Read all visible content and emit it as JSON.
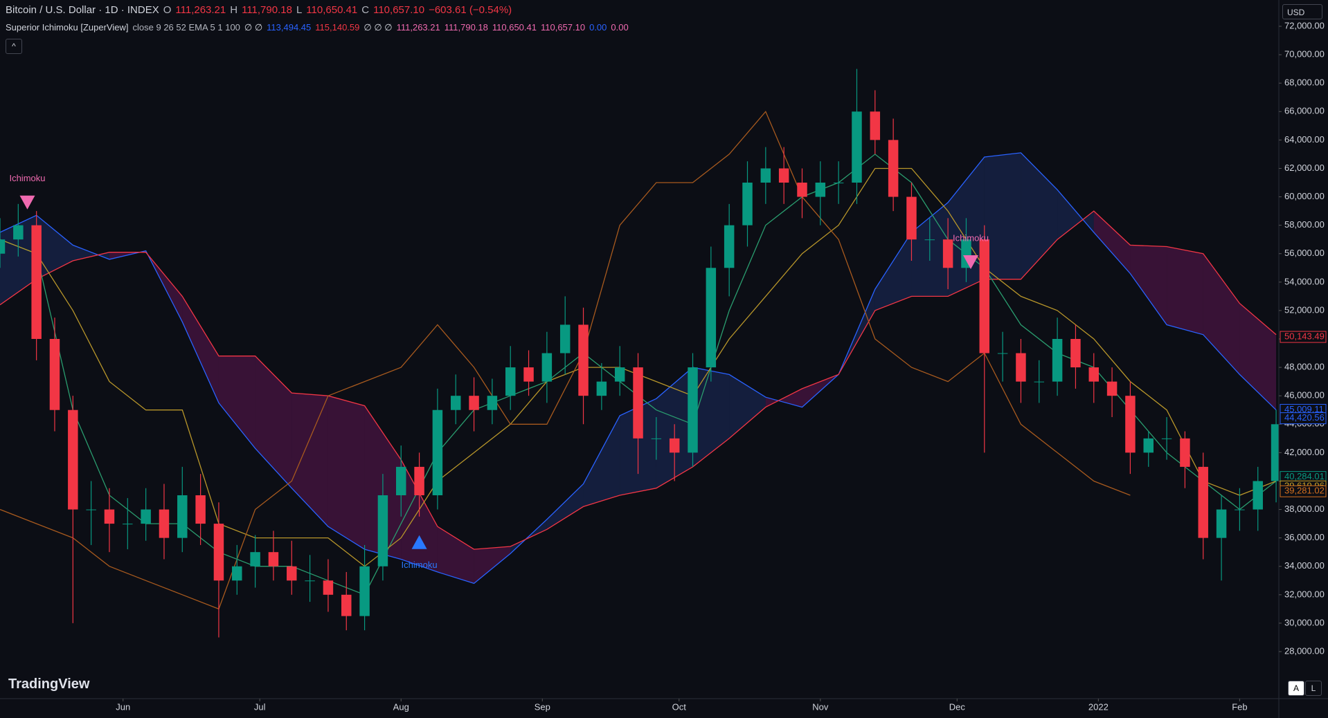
{
  "header": {
    "symbol": "Bitcoin / U.S. Dollar · 1D · INDEX",
    "o_label": "O",
    "o": "111,263.21",
    "h_label": "H",
    "h": "111,790.18",
    "l_label": "L",
    "l": "110,650.41",
    "c_label": "C",
    "c": "110,657.10",
    "change": "−603.61 (−0.54%)"
  },
  "indicator": {
    "name": "Superior Ichimoku [ZuperView]",
    "params": "close 9 26 52 EMA 5 1 100",
    "e1": "∅ ∅",
    "v1": "113,494.45",
    "v2": "115,140.59",
    "e2": "∅ ∅ ∅",
    "v3": "111,263.21",
    "v4": "111,790.18",
    "v5": "110,650.41",
    "v6": "110,657.10",
    "v7": "0.00",
    "v8": "0.00"
  },
  "currency": "USD",
  "brand": "TradingView",
  "buttons": [
    "A",
    "L"
  ],
  "chart_data": {
    "type": "candlestick",
    "xlim": [
      0,
      280.6
    ],
    "ylim": [
      24690,
      73850
    ],
    "xticks": [
      {
        "value": 27,
        "label": "Jun"
      },
      {
        "value": 57,
        "label": "Jul"
      },
      {
        "value": 88,
        "label": "Aug"
      },
      {
        "value": 119,
        "label": "Sep"
      },
      {
        "value": 149,
        "label": "Oct"
      },
      {
        "value": 180,
        "label": "Nov"
      },
      {
        "value": 210,
        "label": "Dec"
      },
      {
        "value": 241,
        "label": "2022"
      },
      {
        "value": 272,
        "label": "Feb"
      }
    ],
    "yticks": [
      {
        "value": 28000,
        "label": "28,000.00"
      },
      {
        "value": 30000,
        "label": "30,000.00"
      },
      {
        "value": 32000,
        "label": "32,000.00"
      },
      {
        "value": 34000,
        "label": "34,000.00"
      },
      {
        "value": 36000,
        "label": "36,000.00"
      },
      {
        "value": 38000,
        "label": "38,000.00"
      },
      {
        "value": 40000,
        "label": "40,000.00"
      },
      {
        "value": 42000,
        "label": "42,000.00"
      },
      {
        "value": 44000,
        "label": "44,000.00"
      },
      {
        "value": 46000,
        "label": "46,000.00"
      },
      {
        "value": 48000,
        "label": "48,000.00"
      },
      {
        "value": 50000,
        "label": "50,000.00"
      },
      {
        "value": 52000,
        "label": "52,000.00"
      },
      {
        "value": 54000,
        "label": "54,000.00"
      },
      {
        "value": 56000,
        "label": "56,000.00"
      },
      {
        "value": 58000,
        "label": "58,000.00"
      },
      {
        "value": 60000,
        "label": "60,000.00"
      },
      {
        "value": 62000,
        "label": "62,000.00"
      },
      {
        "value": 64000,
        "label": "64,000.00"
      },
      {
        "value": 66000,
        "label": "66,000.00"
      },
      {
        "value": 68000,
        "label": "68,000.00"
      },
      {
        "value": 70000,
        "label": "70,000.00"
      },
      {
        "value": 72000,
        "label": "72,000.00"
      }
    ],
    "up_color": "#089981",
    "down_color": "#f23645",
    "candles": {
      "x": [
        0,
        4,
        8,
        12,
        16,
        20,
        24,
        28,
        32,
        36,
        40,
        44,
        48,
        52,
        56,
        60,
        64,
        68,
        72,
        76,
        80,
        84,
        88,
        92,
        96,
        100,
        104,
        108,
        112,
        116,
        120,
        124,
        128,
        132,
        136,
        140,
        144,
        148,
        152,
        156,
        160,
        164,
        168,
        172,
        176,
        180,
        184,
        188,
        192,
        196,
        200,
        204,
        208,
        212,
        216,
        220,
        224,
        228,
        232,
        236,
        240,
        244,
        248,
        252,
        256,
        260,
        264,
        268,
        272,
        276,
        280
      ],
      "open": [
        56000,
        57000,
        58000,
        50000,
        45000,
        38000,
        38000,
        37000,
        37000,
        38000,
        36000,
        39000,
        37000,
        33000,
        34000,
        35000,
        34000,
        33000,
        33000,
        32000,
        30500,
        34000,
        39000,
        41000,
        39000,
        45000,
        46000,
        45000,
        46000,
        48000,
        47000,
        49000,
        51000,
        46000,
        47000,
        48000,
        43000,
        43000,
        42000,
        48000,
        55000,
        58000,
        61000,
        62000,
        61000,
        60000,
        61000,
        61000,
        66000,
        64000,
        60000,
        57000,
        57000,
        55000,
        57000,
        49000,
        49000,
        47000,
        47000,
        50000,
        48000,
        47000,
        46000,
        42000,
        43000,
        43000,
        41000,
        36000,
        38000,
        38000,
        40000
      ],
      "high": [
        58500,
        59500,
        59000,
        51500,
        46000,
        40000,
        39500,
        38800,
        39500,
        39800,
        41000,
        40500,
        38500,
        35500,
        36200,
        36500,
        35800,
        34800,
        34500,
        33600,
        35500,
        40500,
        42500,
        42000,
        46500,
        47500,
        47300,
        47200,
        49500,
        49200,
        50500,
        53000,
        52200,
        48300,
        49500,
        49000,
        44500,
        44000,
        49000,
        56500,
        59500,
        62500,
        63500,
        63500,
        62000,
        62500,
        62500,
        69000,
        67500,
        65500,
        61000,
        58500,
        58500,
        58500,
        58000,
        50500,
        50000,
        48500,
        51500,
        51000,
        49000,
        48000,
        47000,
        43500,
        44500,
        43500,
        42000,
        39000,
        39500,
        41000,
        45000
      ],
      "low": [
        55000,
        55800,
        48500,
        43500,
        30000,
        35500,
        35000,
        35200,
        35800,
        34500,
        35000,
        35500,
        29000,
        32000,
        32500,
        33000,
        32000,
        31500,
        30800,
        29500,
        29500,
        33000,
        37500,
        37500,
        38000,
        44000,
        43500,
        44000,
        45000,
        46000,
        45500,
        47500,
        44000,
        45000,
        46000,
        40500,
        41500,
        40000,
        41000,
        47000,
        53000,
        56500,
        59500,
        59500,
        58500,
        58000,
        59500,
        59500,
        63000,
        59000,
        55500,
        55500,
        53500,
        54000,
        42000,
        47000,
        45500,
        45500,
        46000,
        46500,
        45500,
        44500,
        40500,
        41000,
        41500,
        39500,
        34500,
        33000,
        36500,
        36500,
        38500
      ],
      "close": [
        57000,
        58000,
        50000,
        45000,
        38000,
        38000,
        37000,
        37000,
        38000,
        36000,
        39000,
        37000,
        33000,
        34000,
        35000,
        34000,
        33000,
        33000,
        32000,
        30500,
        34000,
        39000,
        41000,
        39000,
        45000,
        46000,
        45000,
        46000,
        48000,
        47000,
        49000,
        51000,
        46000,
        47000,
        48000,
        43000,
        43000,
        42000,
        48000,
        55000,
        58000,
        61000,
        62000,
        61000,
        60000,
        61000,
        61000,
        66000,
        64000,
        60000,
        57000,
        57000,
        55000,
        57000,
        49000,
        49000,
        47000,
        47000,
        50000,
        48000,
        47000,
        46000,
        42000,
        43000,
        43000,
        41000,
        36000,
        38000,
        38000,
        40000,
        44000
      ]
    },
    "line_x": [
      0,
      8,
      16,
      24,
      32,
      40,
      48,
      56,
      64,
      72,
      80,
      88,
      96,
      104,
      112,
      120,
      128,
      136,
      144,
      152,
      160,
      168,
      176,
      184,
      192,
      200,
      208,
      216,
      224,
      232,
      240,
      248,
      256,
      264,
      272,
      280
    ],
    "cloud": {
      "above_color": "rgba(30,50,110,0.45)",
      "below_color": "rgba(110,25,95,0.45)"
    },
    "lines": [
      {
        "color": "#2962ff",
        "values": [
          57500,
          58700,
          56600,
          55600,
          56200,
          51200,
          45500,
          42300,
          39500,
          36800,
          35200,
          34500,
          33600,
          32800,
          34900,
          37300,
          39800,
          44600,
          45800,
          48000,
          47500,
          45900,
          45200,
          47500,
          53500,
          57500,
          59600,
          62800,
          63100,
          60500,
          57500,
          54600,
          51000,
          50300,
          47500,
          45000
        ]
      },
      {
        "color": "#f23645",
        "values": [
          52400,
          54200,
          55500,
          56100,
          56100,
          53000,
          48800,
          48800,
          46200,
          46000,
          45300,
          41500,
          36800,
          35200,
          35400,
          36600,
          38200,
          39000,
          39500,
          41000,
          43000,
          45200,
          46500,
          47500,
          52000,
          53000,
          53000,
          54200,
          54200,
          57000,
          59000,
          56600,
          56500,
          56000,
          52500,
          50300
        ]
      },
      {
        "color": "#2a9d6f",
        "values": [
          57000,
          56000,
          45000,
          39000,
          37000,
          37000,
          35000,
          34000,
          34000,
          33000,
          32000,
          37000,
          42000,
          45000,
          46000,
          47000,
          49000,
          47000,
          45000,
          44000,
          52000,
          58000,
          60000,
          61000,
          63000,
          61000,
          57000,
          55000,
          51000,
          49000,
          48000,
          45000,
          42000,
          40000,
          38000,
          40000
        ]
      },
      {
        "color": "#b8962a",
        "values": [
          57000,
          56000,
          52000,
          47000,
          45000,
          45000,
          37000,
          36000,
          36000,
          36000,
          34000,
          36000,
          40000,
          42000,
          44000,
          47000,
          48000,
          48000,
          47000,
          46000,
          50000,
          53000,
          56000,
          58000,
          62000,
          62000,
          59000,
          55000,
          53000,
          52000,
          50000,
          47000,
          45000,
          40000,
          39000,
          40000
        ]
      },
      {
        "color": "#a85a1e",
        "values": [
          38000,
          37000,
          36000,
          34000,
          33000,
          32000,
          31000,
          38000,
          40000,
          46000,
          47000,
          48000,
          51000,
          48000,
          44000,
          44000,
          49000,
          58000,
          61000,
          61000,
          63000,
          66000,
          60000,
          57000,
          50000,
          48000,
          47000,
          49000,
          44000,
          42000,
          40000,
          39000,
          null,
          null,
          null,
          null
        ]
      }
    ],
    "signals": [
      {
        "x": 6,
        "y": 59600,
        "label": "Ichimoku",
        "dir": "down",
        "color": "#f06ab0"
      },
      {
        "x": 213,
        "y": 55400,
        "label": "Ichimoku",
        "dir": "down",
        "color": "#f06ab0"
      },
      {
        "x": 92,
        "y": 35700,
        "label": "Ichimoku",
        "dir": "up",
        "color": "#2979ff"
      }
    ],
    "last_labels": [
      {
        "value": 50143.49,
        "label": "50,143.49",
        "color": "#f23645"
      },
      {
        "value": 45009.11,
        "label": "45,009.11",
        "color": "#2962ff"
      },
      {
        "value": 44420.56,
        "label": "44,420.56",
        "color": "#2962ff"
      },
      {
        "value": 40284.01,
        "label": "40,284.01",
        "color": "#089981"
      },
      {
        "value": 39619.96,
        "label": "39,619.96",
        "color": "#c9a227"
      },
      {
        "value": 39281.02,
        "label": "39,281.02",
        "color": "#d4701e"
      }
    ]
  }
}
